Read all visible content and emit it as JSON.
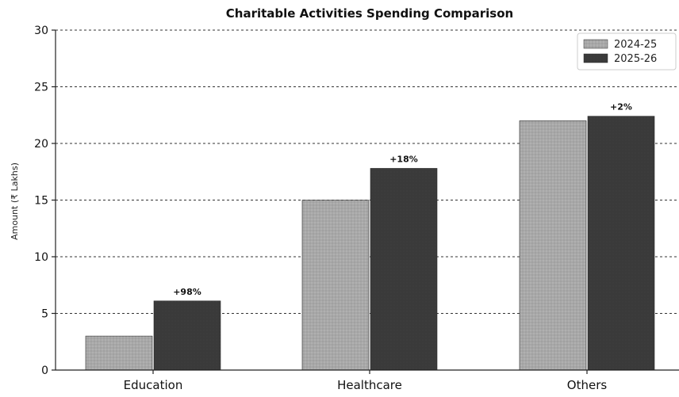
{
  "chart_data": {
    "type": "bar",
    "title": "Charitable Activities Spending Comparison",
    "xlabel": "",
    "ylabel": "Amount (₹ Lakhs)",
    "categories": [
      "Education",
      "Healthcare",
      "Others"
    ],
    "series": [
      {
        "name": "2024-25",
        "values": [
          3.0,
          15.0,
          22.0
        ],
        "color": "#a8a8a8"
      },
      {
        "name": "2025-26",
        "values": [
          6.1,
          17.8,
          22.4
        ],
        "color": "#3a3a3a"
      }
    ],
    "change_labels": [
      "+98%",
      "+18%",
      "+2%"
    ],
    "ylim": [
      0,
      30
    ],
    "yticks": [
      0,
      5,
      10,
      15,
      20,
      25,
      30
    ],
    "grid": true,
    "legend": "top-right"
  }
}
